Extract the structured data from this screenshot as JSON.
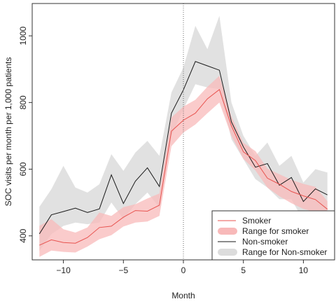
{
  "chart_data": {
    "type": "line",
    "xlabel": "Month",
    "ylabel": "SOC visits per month per 1,000 patients",
    "xlim": [
      -12.6,
      12.6
    ],
    "ylim": [
      328,
      1097
    ],
    "x_ticks": [
      -10,
      -5,
      0,
      5,
      10
    ],
    "x_tick_labels": [
      "−10",
      "−5",
      "0",
      "5",
      "10"
    ],
    "y_ticks": [
      400,
      600,
      800,
      1000
    ],
    "y_tick_labels": [
      "400",
      "600",
      "800",
      "1000"
    ],
    "x": [
      -12,
      -11,
      -10,
      -9,
      -8,
      -7,
      -6,
      -5,
      -4,
      -3,
      -2,
      -1,
      0,
      1,
      2,
      3,
      4,
      5,
      6,
      7,
      8,
      9,
      10,
      11,
      12
    ],
    "reference_line_x": 0,
    "grid": false,
    "legend_position": "bottom-right",
    "series": [
      {
        "name": "Smoker",
        "kind": "line",
        "color": "#e8534f",
        "values": [
          372,
          388,
          380,
          378,
          395,
          425,
          429,
          456,
          476,
          474,
          492,
          714,
          747,
          768,
          811,
          839,
          730,
          652,
          626,
          573,
          555,
          533,
          520,
          509,
          480
        ]
      },
      {
        "name": "Range for smoker",
        "kind": "band",
        "color": "#f8b9b9",
        "lower": [
          337,
          356,
          352,
          350,
          368,
          390,
          402,
          428,
          440,
          443,
          460,
          669,
          710,
          734,
          768,
          800,
          700,
          631,
          596,
          545,
          519,
          498,
          481,
          472,
          449
        ],
        "upper": [
          430,
          450,
          420,
          410,
          425,
          470,
          460,
          486,
          495,
          512,
          527,
          755,
          788,
          808,
          847,
          880,
          758,
          679,
          654,
          602,
          585,
          568,
          556,
          547,
          504
        ]
      },
      {
        "name": "Non-smoker",
        "kind": "line",
        "color": "#1a1a1a",
        "values": [
          406,
          463,
          473,
          483,
          470,
          481,
          583,
          497,
          564,
          604,
          548,
          768,
          838,
          923,
          910,
          897,
          742,
          667,
          606,
          617,
          552,
          575,
          503,
          541,
          523
        ]
      },
      {
        "name": "Range for Non-smoker",
        "kind": "band",
        "color": "#dcdcdc",
        "lower": [
          355,
          405,
          430,
          440,
          435,
          440,
          500,
          450,
          495,
          530,
          485,
          700,
          780,
          855,
          845,
          840,
          690,
          630,
          570,
          545,
          510,
          510,
          445,
          470,
          460
        ],
        "upper": [
          487,
          540,
          610,
          545,
          530,
          555,
          645,
          595,
          650,
          685,
          640,
          830,
          905,
          1030,
          960,
          1060,
          800,
          700,
          640,
          680,
          610,
          640,
          560,
          600,
          590
        ]
      }
    ]
  }
}
